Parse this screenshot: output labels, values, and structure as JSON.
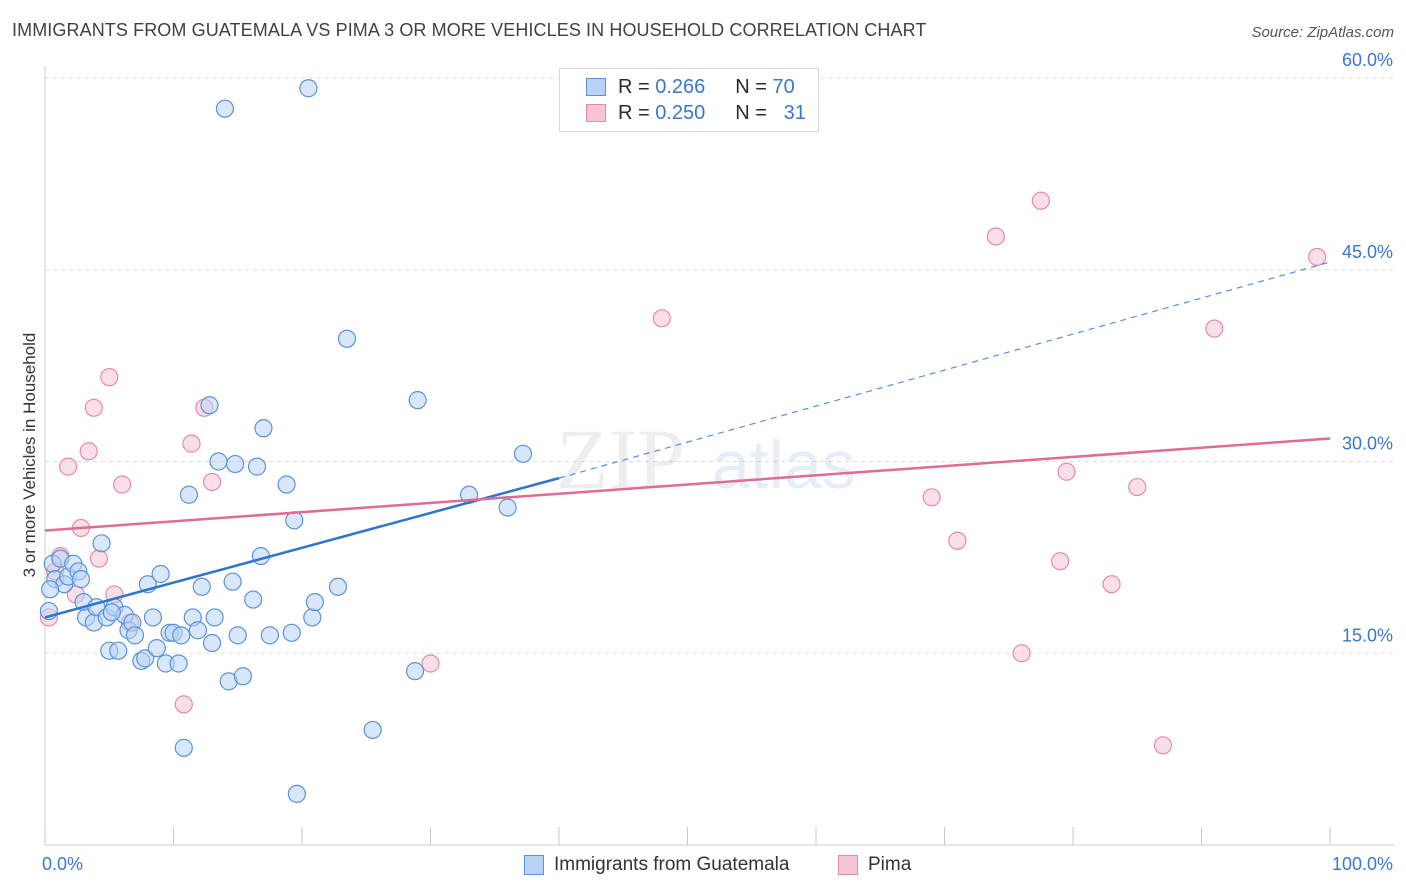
{
  "header": {
    "title": "IMMIGRANTS FROM GUATEMALA VS PIMA 3 OR MORE VEHICLES IN HOUSEHOLD CORRELATION CHART",
    "source": "Source: ZipAtlas.com"
  },
  "watermark": {
    "zip": "ZIP",
    "atlas": "atlas"
  },
  "legend": {
    "rows": [
      {
        "r_label": "R =",
        "r_value": "0.266",
        "n_label": "N =",
        "n_value": "70"
      },
      {
        "r_label": "R =",
        "r_value": "0.250",
        "n_label": "N =",
        "n_value": "31"
      }
    ]
  },
  "colors": {
    "blue_fill": "#b8d3f5",
    "blue_stroke": "#5b93d8",
    "blue_line": "#2f74d0",
    "pink_fill": "#f8c5d5",
    "pink_stroke": "#e58aa8",
    "pink_line": "#e06b93",
    "axis_label": "#3a78c9",
    "grid": "#dcdcdc"
  },
  "chart_data": {
    "type": "scatter",
    "title": "IMMIGRANTS FROM GUATEMALA VS PIMA 3 OR MORE VEHICLES IN HOUSEHOLD CORRELATION CHART",
    "xlabel": "",
    "ylabel": "3 or more Vehicles in Household",
    "xlim": [
      0,
      100
    ],
    "ylim": [
      0,
      60
    ],
    "x_tick_labels": [
      {
        "value": 0,
        "label": "0.0%"
      },
      {
        "value": 100,
        "label": "100.0%"
      }
    ],
    "y_tick_labels": [
      {
        "value": 15,
        "label": "15.0%"
      },
      {
        "value": 30,
        "label": "30.0%"
      },
      {
        "value": 45,
        "label": "45.0%"
      },
      {
        "value": 60,
        "label": "60.0%"
      }
    ],
    "x_minor_ticks": [
      10,
      20,
      30,
      40,
      50,
      60,
      70,
      80,
      90,
      100
    ],
    "grid": true,
    "series": [
      {
        "name": "Immigrants from Guatemala",
        "color": "blue",
        "trend": {
          "x0": 0,
          "y0": 17.8,
          "x1": 40,
          "y1": 28.7,
          "dash_to_x": 100,
          "dash_to_y": 45.6
        },
        "points": [
          [
            0.3,
            18.3
          ],
          [
            0.6,
            22.0
          ],
          [
            0.8,
            20.8
          ],
          [
            1.2,
            22.4
          ],
          [
            1.5,
            20.4
          ],
          [
            1.8,
            21.0
          ],
          [
            2.2,
            22.0
          ],
          [
            2.6,
            21.4
          ],
          [
            2.8,
            20.8
          ],
          [
            3.0,
            19.0
          ],
          [
            3.2,
            17.8
          ],
          [
            3.8,
            17.4
          ],
          [
            4.0,
            18.6
          ],
          [
            4.4,
            23.6
          ],
          [
            4.8,
            17.8
          ],
          [
            5.0,
            15.2
          ],
          [
            5.4,
            18.6
          ],
          [
            5.7,
            15.2
          ],
          [
            6.2,
            18.0
          ],
          [
            6.5,
            16.8
          ],
          [
            6.8,
            17.4
          ],
          [
            7.0,
            16.4
          ],
          [
            7.5,
            14.4
          ],
          [
            7.8,
            14.6
          ],
          [
            8.0,
            20.4
          ],
          [
            8.4,
            17.8
          ],
          [
            8.7,
            15.4
          ],
          [
            9.0,
            21.2
          ],
          [
            9.4,
            14.2
          ],
          [
            9.7,
            16.6
          ],
          [
            10.0,
            16.6
          ],
          [
            10.4,
            14.2
          ],
          [
            10.6,
            16.4
          ],
          [
            10.8,
            7.6
          ],
          [
            11.2,
            27.4
          ],
          [
            11.5,
            17.8
          ],
          [
            11.9,
            16.8
          ],
          [
            12.2,
            20.2
          ],
          [
            12.8,
            34.4
          ],
          [
            13.0,
            15.8
          ],
          [
            13.2,
            17.8
          ],
          [
            13.5,
            30.0
          ],
          [
            14.0,
            57.6
          ],
          [
            14.3,
            12.8
          ],
          [
            14.6,
            20.6
          ],
          [
            14.8,
            29.8
          ],
          [
            15.0,
            16.4
          ],
          [
            15.4,
            13.2
          ],
          [
            16.2,
            19.2
          ],
          [
            16.5,
            29.6
          ],
          [
            16.8,
            22.6
          ],
          [
            17.0,
            32.6
          ],
          [
            17.5,
            16.4
          ],
          [
            18.8,
            28.2
          ],
          [
            19.2,
            16.6
          ],
          [
            19.4,
            25.4
          ],
          [
            19.6,
            4.0
          ],
          [
            20.5,
            59.2
          ],
          [
            20.8,
            17.8
          ],
          [
            21.0,
            19.0
          ],
          [
            22.8,
            20.2
          ],
          [
            23.5,
            39.6
          ],
          [
            25.5,
            9.0
          ],
          [
            28.8,
            13.6
          ],
          [
            29.0,
            34.8
          ],
          [
            33.0,
            27.4
          ],
          [
            36.0,
            26.4
          ],
          [
            37.2,
            30.6
          ],
          [
            0.4,
            20.0
          ],
          [
            5.2,
            18.2
          ]
        ]
      },
      {
        "name": "Pima",
        "color": "pink",
        "trend": {
          "x0": 0,
          "y0": 24.6,
          "x1": 100,
          "y1": 31.8
        },
        "points": [
          [
            0.3,
            17.8
          ],
          [
            0.8,
            21.4
          ],
          [
            1.2,
            22.6
          ],
          [
            1.8,
            29.6
          ],
          [
            2.4,
            19.6
          ],
          [
            2.8,
            24.8
          ],
          [
            3.4,
            30.8
          ],
          [
            3.8,
            34.2
          ],
          [
            4.2,
            22.4
          ],
          [
            5.0,
            36.6
          ],
          [
            5.4,
            19.6
          ],
          [
            6.0,
            28.2
          ],
          [
            6.6,
            17.4
          ],
          [
            10.8,
            11.0
          ],
          [
            11.4,
            31.4
          ],
          [
            12.4,
            34.2
          ],
          [
            13.0,
            28.4
          ],
          [
            30.0,
            14.2
          ],
          [
            48.0,
            41.2
          ],
          [
            69.0,
            27.2
          ],
          [
            71.0,
            23.8
          ],
          [
            74.0,
            47.6
          ],
          [
            76.0,
            15.0
          ],
          [
            77.5,
            50.4
          ],
          [
            79.0,
            22.2
          ],
          [
            79.5,
            29.2
          ],
          [
            83.0,
            20.4
          ],
          [
            85.0,
            28.0
          ],
          [
            87.0,
            7.8
          ],
          [
            91.0,
            40.4
          ],
          [
            99.0,
            46.0
          ]
        ]
      }
    ]
  },
  "bottom_legend": {
    "items": [
      {
        "label": "Immigrants from Guatemala"
      },
      {
        "label": "Pima"
      }
    ]
  }
}
